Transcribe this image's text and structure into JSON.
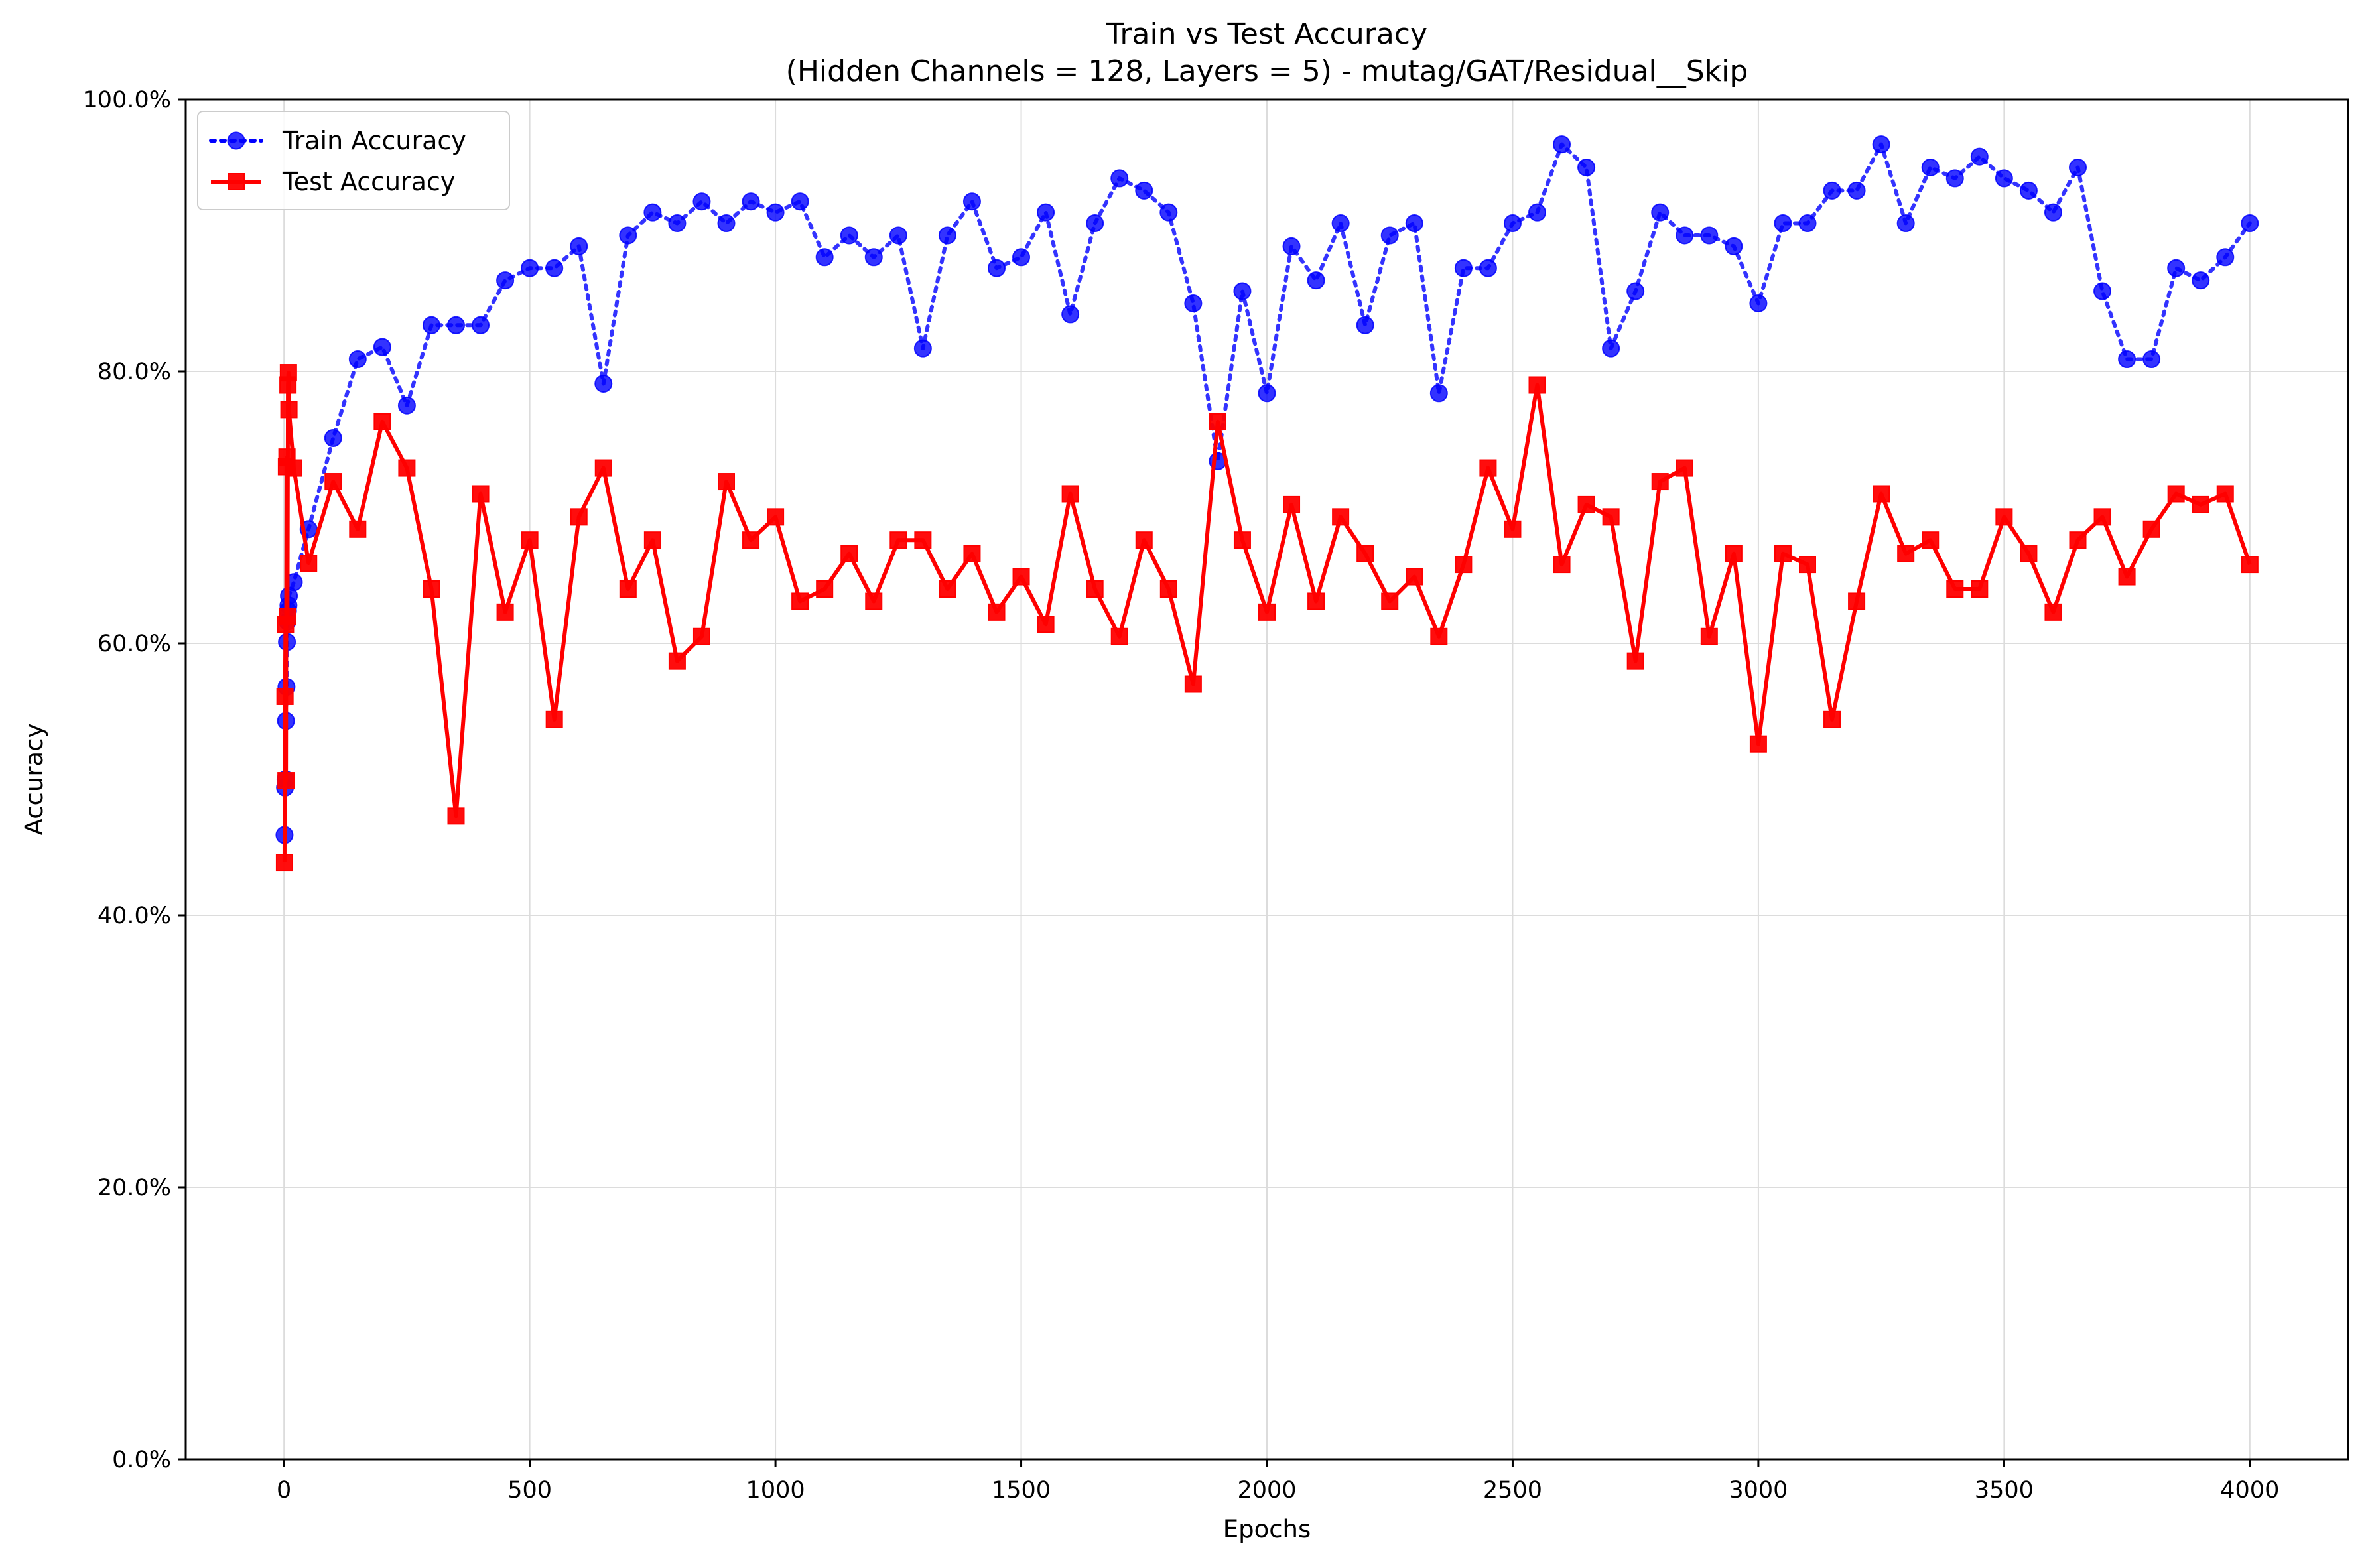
{
  "chart_data": {
    "type": "line",
    "title": "Train vs Test Accuracy",
    "subtitle": "(Hidden Channels = 128, Layers = 5) - mutag/GAT/Residual__Skip",
    "xlabel": "Epochs",
    "ylabel": "Accuracy",
    "xlim": [
      -200,
      4200
    ],
    "ylim": [
      0,
      100
    ],
    "xticks": [
      0,
      500,
      1000,
      1500,
      2000,
      2500,
      3000,
      3500,
      4000
    ],
    "xtick_labels": [
      "0",
      "500",
      "1000",
      "1500",
      "2000",
      "2500",
      "3000",
      "3500",
      "4000"
    ],
    "yticks": [
      0,
      20,
      40,
      60,
      80,
      100
    ],
    "ytick_labels": [
      "0.0%",
      "20.0%",
      "40.0%",
      "60.0%",
      "80.0%",
      "100.0%"
    ],
    "grid": true,
    "legend_position": "upper-left",
    "series": [
      {
        "name": "Train Accuracy",
        "color": "#0000ff",
        "line_style": "dotted",
        "marker": "circle",
        "x": [
          1,
          2,
          3,
          4,
          5,
          6,
          7,
          8,
          9,
          10,
          20,
          50,
          100,
          150,
          200,
          250,
          300,
          350,
          400,
          450,
          500,
          550,
          600,
          650,
          700,
          750,
          800,
          850,
          900,
          950,
          1000,
          1050,
          1100,
          1150,
          1200,
          1250,
          1300,
          1350,
          1400,
          1450,
          1500,
          1550,
          1600,
          1650,
          1700,
          1750,
          1800,
          1850,
          1900,
          1950,
          2000,
          2050,
          2100,
          2150,
          2200,
          2250,
          2300,
          2350,
          2400,
          2450,
          2500,
          2550,
          2600,
          2650,
          2700,
          2750,
          2800,
          2850,
          2900,
          2950,
          3000,
          3050,
          3100,
          3150,
          3200,
          3250,
          3300,
          3350,
          3400,
          3450,
          3500,
          3550,
          3600,
          3650,
          3700,
          3750,
          3800,
          3850,
          3900,
          3950,
          4000
        ],
        "y": [
          45.9,
          49.4,
          50.0,
          54.3,
          56.8,
          60.1,
          61.6,
          62.4,
          62.8,
          63.5,
          64.5,
          68.4,
          75.1,
          80.9,
          81.8,
          77.5,
          83.4,
          83.4,
          83.4,
          86.7,
          87.6,
          87.6,
          89.2,
          79.1,
          90.0,
          91.7,
          90.9,
          92.5,
          90.9,
          92.5,
          91.7,
          92.5,
          88.4,
          90.0,
          88.4,
          90.0,
          81.7,
          90.0,
          92.5,
          87.6,
          88.4,
          91.7,
          84.2,
          90.9,
          94.2,
          93.3,
          91.7,
          85.0,
          73.4,
          85.9,
          78.4,
          89.2,
          86.7,
          90.9,
          83.4,
          90.0,
          90.9,
          78.4,
          87.6,
          87.6,
          90.9,
          91.7,
          96.7,
          95.0,
          81.7,
          85.9,
          91.7,
          90.0,
          90.0,
          89.2,
          85.0,
          90.9,
          90.9,
          93.3,
          93.3,
          96.7,
          90.9,
          95.0,
          94.2,
          95.8,
          94.2,
          93.3,
          91.7,
          95.0,
          85.9,
          80.9,
          80.9,
          87.6,
          86.7,
          88.4,
          90.9
        ]
      },
      {
        "name": "Test Accuracy",
        "color": "#ff0000",
        "line_style": "solid",
        "marker": "square",
        "x": [
          1,
          2,
          3,
          4,
          5,
          6,
          7,
          8,
          9,
          10,
          20,
          50,
          100,
          150,
          200,
          250,
          300,
          350,
          400,
          450,
          500,
          550,
          600,
          650,
          700,
          750,
          800,
          850,
          900,
          950,
          1000,
          1050,
          1100,
          1150,
          1200,
          1250,
          1300,
          1350,
          1400,
          1450,
          1500,
          1550,
          1600,
          1650,
          1700,
          1750,
          1800,
          1850,
          1900,
          1950,
          2000,
          2050,
          2100,
          2150,
          2200,
          2250,
          2300,
          2350,
          2400,
          2450,
          2500,
          2550,
          2600,
          2650,
          2700,
          2750,
          2800,
          2850,
          2900,
          2950,
          3000,
          3050,
          3100,
          3150,
          3200,
          3250,
          3300,
          3350,
          3400,
          3450,
          3500,
          3550,
          3600,
          3650,
          3700,
          3750,
          3800,
          3850,
          3900,
          3950,
          4000
        ],
        "y": [
          43.9,
          56.1,
          61.4,
          49.9,
          73.0,
          73.7,
          62.0,
          79.0,
          79.9,
          77.2,
          72.9,
          65.9,
          71.9,
          68.4,
          76.3,
          72.9,
          64.0,
          47.3,
          71.0,
          62.3,
          67.6,
          54.4,
          69.3,
          72.9,
          64.0,
          67.6,
          58.7,
          60.5,
          71.9,
          67.6,
          69.3,
          63.1,
          64.0,
          66.6,
          63.1,
          67.6,
          67.6,
          64.0,
          66.6,
          62.3,
          64.9,
          61.4,
          71.0,
          64.0,
          60.5,
          67.6,
          64.0,
          57.0,
          76.3,
          67.6,
          62.3,
          70.2,
          63.1,
          69.3,
          66.6,
          63.1,
          64.9,
          60.5,
          65.8,
          72.9,
          68.4,
          79.0,
          65.8,
          70.2,
          69.3,
          58.7,
          71.9,
          72.9,
          60.5,
          66.6,
          52.6,
          66.6,
          65.8,
          54.4,
          63.1,
          71.0,
          66.6,
          67.6,
          64.0,
          64.0,
          69.3,
          66.6,
          62.3,
          67.6,
          69.3,
          64.9,
          68.4,
          71.0,
          70.2,
          71.0,
          65.8
        ]
      }
    ]
  }
}
